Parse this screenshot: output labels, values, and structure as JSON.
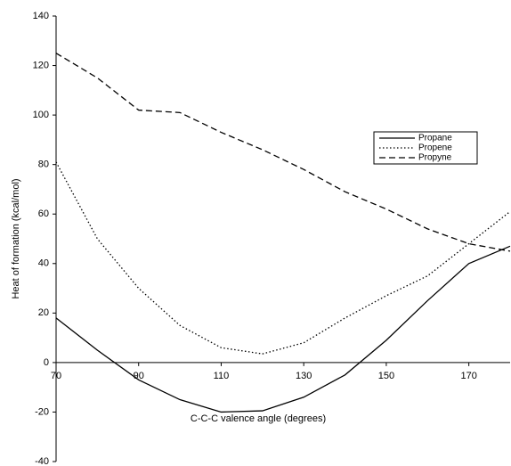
{
  "chart_data": {
    "type": "line",
    "x_label": "C-C-C valence angle (degrees)",
    "y_label": "Heat of formation (kcal/mol)",
    "x": [
      70,
      80,
      90,
      100,
      110,
      120,
      130,
      140,
      150,
      160,
      170,
      180
    ],
    "series": [
      {
        "name": "Propane",
        "color": "#000000",
        "dash": "solid",
        "values": [
          18,
          5,
          -7,
          -15,
          -20,
          -19.5,
          -14,
          -5,
          9,
          25,
          40,
          47
        ]
      },
      {
        "name": "Propene",
        "color": "#000000",
        "dash": "dotted",
        "values": [
          81,
          50,
          30,
          15,
          6,
          3.5,
          8,
          18,
          27,
          35,
          48,
          61
        ]
      },
      {
        "name": "Propyne",
        "color": "#000000",
        "dash": "dashed",
        "values": [
          125,
          115,
          102,
          101,
          93,
          86,
          78,
          69,
          62,
          54,
          48,
          45
        ]
      }
    ],
    "xlim": [
      70,
      180
    ],
    "xticks": [
      70,
      90,
      110,
      130,
      150,
      170
    ],
    "ylim": [
      -40,
      140
    ],
    "yticks": [
      -40,
      -20,
      0,
      20,
      40,
      60,
      80,
      100,
      120,
      140
    ],
    "grid": false,
    "legend": "right"
  }
}
